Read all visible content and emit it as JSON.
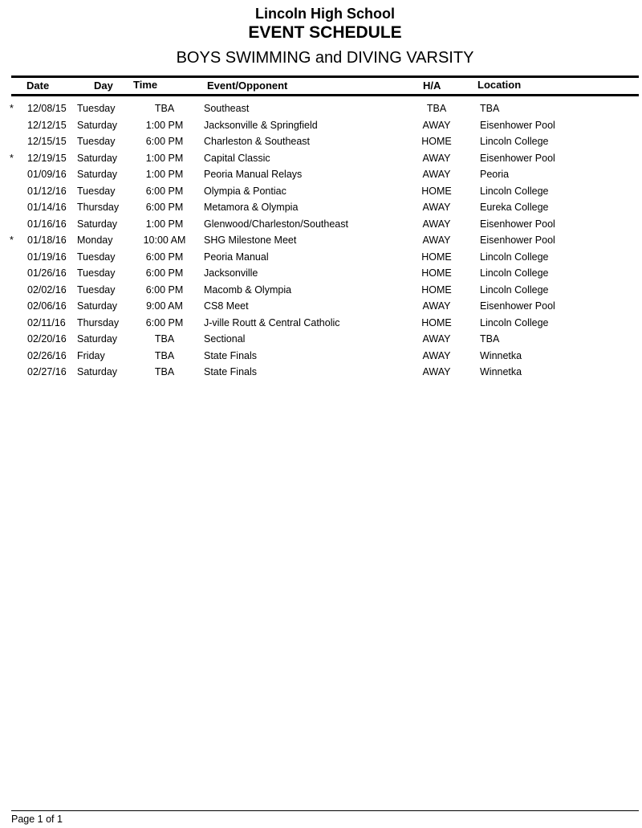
{
  "header": {
    "school": "Lincoln High School",
    "title": "EVENT SCHEDULE",
    "team": "BOYS SWIMMING and DIVING VARSITY"
  },
  "columns": {
    "date": "Date",
    "day": "Day",
    "time": "Time",
    "event": "Event/Opponent",
    "ha": "H/A",
    "location": "Location"
  },
  "rows": [
    {
      "mark": "*",
      "date": "12/08/15",
      "day": "Tuesday",
      "time": "TBA",
      "event": "Southeast",
      "ha": "TBA",
      "location": "TBA"
    },
    {
      "mark": "",
      "date": "12/12/15",
      "day": "Saturday",
      "time": "1:00 PM",
      "event": "Jacksonville & Springfield",
      "ha": "AWAY",
      "location": "Eisenhower Pool"
    },
    {
      "mark": "",
      "date": "12/15/15",
      "day": "Tuesday",
      "time": "6:00 PM",
      "event": "Charleston & Southeast",
      "ha": "HOME",
      "location": "Lincoln College"
    },
    {
      "mark": "*",
      "date": "12/19/15",
      "day": "Saturday",
      "time": "1:00 PM",
      "event": "Capital Classic",
      "ha": "AWAY",
      "location": "Eisenhower Pool"
    },
    {
      "mark": "",
      "date": "01/09/16",
      "day": "Saturday",
      "time": "1:00 PM",
      "event": "Peoria Manual Relays",
      "ha": "AWAY",
      "location": "Peoria"
    },
    {
      "mark": "",
      "date": "01/12/16",
      "day": "Tuesday",
      "time": "6:00 PM",
      "event": "Olympia & Pontiac",
      "ha": "HOME",
      "location": "Lincoln College"
    },
    {
      "mark": "",
      "date": "01/14/16",
      "day": "Thursday",
      "time": "6:00 PM",
      "event": "Metamora & Olympia",
      "ha": "AWAY",
      "location": "Eureka College"
    },
    {
      "mark": "",
      "date": "01/16/16",
      "day": "Saturday",
      "time": "1:00 PM",
      "event": "Glenwood/Charleston/Southeast",
      "ha": "AWAY",
      "location": "Eisenhower Pool"
    },
    {
      "mark": "*",
      "date": "01/18/16",
      "day": "Monday",
      "time": "10:00 AM",
      "event": "SHG Milestone Meet",
      "ha": "AWAY",
      "location": "Eisenhower Pool"
    },
    {
      "mark": "",
      "date": "01/19/16",
      "day": "Tuesday",
      "time": "6:00 PM",
      "event": "Peoria Manual",
      "ha": "HOME",
      "location": "Lincoln College"
    },
    {
      "mark": "",
      "date": "01/26/16",
      "day": "Tuesday",
      "time": "6:00 PM",
      "event": "Jacksonville",
      "ha": "HOME",
      "location": "Lincoln College"
    },
    {
      "mark": "",
      "date": "02/02/16",
      "day": "Tuesday",
      "time": "6:00 PM",
      "event": "Macomb & Olympia",
      "ha": "HOME",
      "location": "Lincoln College"
    },
    {
      "mark": "",
      "date": "02/06/16",
      "day": "Saturday",
      "time": "9:00 AM",
      "event": "CS8 Meet",
      "ha": "AWAY",
      "location": "Eisenhower Pool"
    },
    {
      "mark": "",
      "date": "02/11/16",
      "day": "Thursday",
      "time": "6:00 PM",
      "event": "J-ville Routt & Central Catholic",
      "ha": "HOME",
      "location": "Lincoln College"
    },
    {
      "mark": "",
      "date": "02/20/16",
      "day": "Saturday",
      "time": "TBA",
      "event": "Sectional",
      "ha": "AWAY",
      "location": "TBA"
    },
    {
      "mark": "",
      "date": "02/26/16",
      "day": "Friday",
      "time": "TBA",
      "event": "State Finals",
      "ha": "AWAY",
      "location": "Winnetka"
    },
    {
      "mark": "",
      "date": "02/27/16",
      "day": "Saturday",
      "time": "TBA",
      "event": "State Finals",
      "ha": "AWAY",
      "location": "Winnetka"
    }
  ],
  "footer": {
    "page": "Page 1 of 1"
  }
}
